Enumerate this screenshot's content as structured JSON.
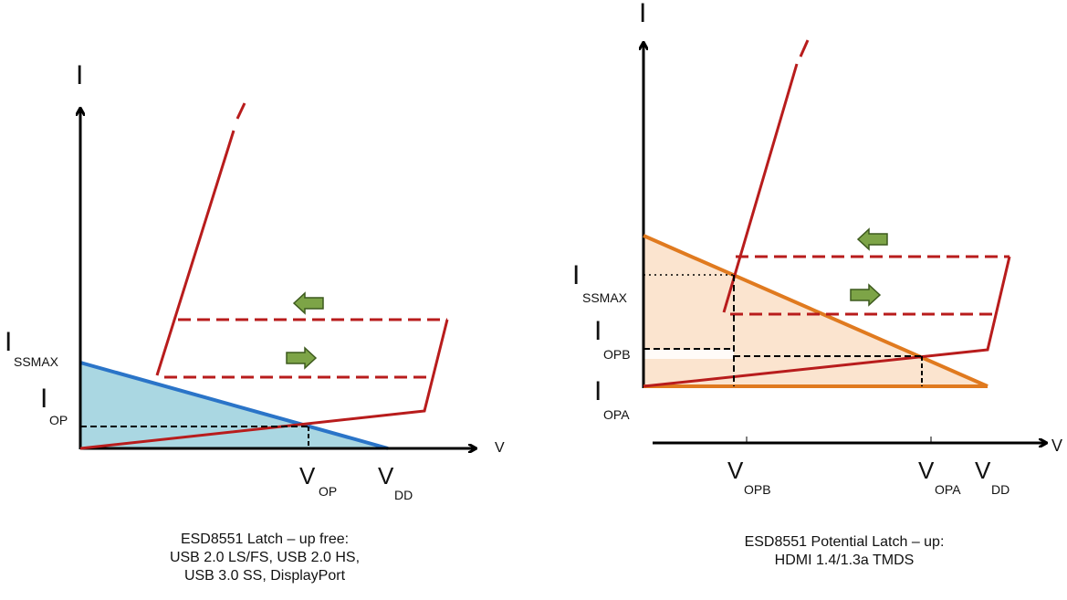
{
  "colors": {
    "red": "#b81c1c",
    "blue": "#2a74c8",
    "blue_fill": "#aad7e2",
    "orange": "#e07a1f",
    "orange_fill": "#fbe4cf",
    "arrow_green": "#7da447",
    "arrow_stroke": "#3d5a1e"
  },
  "left_diagram": {
    "axis_y_label": "I",
    "axis_x_label": "V",
    "issmax_main": "I",
    "issmax_sub": "SSMAX",
    "iop_main": "I",
    "iop_sub": "OP",
    "vop_main": "V",
    "vop_sub": "OP",
    "vdd_main": "V",
    "vdd_sub": "DD",
    "caption": [
      "ESD8551 Latch – up free:",
      "USB 2.0 LS/FS, USB 2.0 HS,",
      "USB 3.0 SS, DisplayPort"
    ]
  },
  "right_diagram": {
    "axis_y_label": "I",
    "axis_x_label": "V",
    "issmax_main": "I",
    "issmax_sub": "SSMAX",
    "iopb_main": "I",
    "iopb_sub": "OPB",
    "iopa_main": "I",
    "iopa_sub": "OPA",
    "vopb_main": "V",
    "vopb_sub": "OPB",
    "vopa_main": "V",
    "vopa_sub": "OPA",
    "vdd_main": "V",
    "vdd_sub": "DD",
    "caption": [
      "ESD8551 Potential Latch – up:",
      "HDMI 1.4/1.3a TMDS"
    ]
  }
}
